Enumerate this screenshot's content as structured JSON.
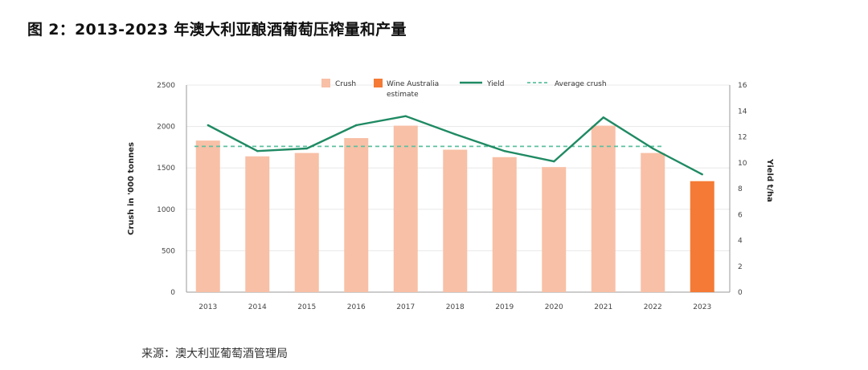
{
  "page": {
    "title": "图 2：2013-2023 年澳大利亚酿酒葡萄压榨量和产量",
    "source": "来源：澳大利亚葡萄酒管理局"
  },
  "colors": {
    "crush": "#f8c0a6",
    "estimate": "#f47a35",
    "yield": "#1f8a63",
    "average": "#5cc0a0",
    "grid": "#e8e8e8"
  },
  "chart_data": {
    "type": "bar",
    "categories": [
      "2013",
      "2014",
      "2015",
      "2016",
      "2017",
      "2018",
      "2019",
      "2020",
      "2021",
      "2022",
      "2023"
    ],
    "series": [
      {
        "name": "Crush",
        "type": "bar",
        "axis": "left",
        "values": [
          1830,
          1640,
          1680,
          1860,
          2010,
          1720,
          1630,
          1510,
          2010,
          1680,
          1340
        ],
        "estimate_flags": [
          false,
          false,
          false,
          false,
          false,
          false,
          false,
          false,
          false,
          false,
          true
        ]
      },
      {
        "name": "Yield",
        "type": "line",
        "axis": "right",
        "values": [
          12.9,
          10.9,
          11.1,
          12.9,
          13.6,
          12.2,
          10.9,
          10.1,
          13.5,
          11.1,
          9.1
        ]
      },
      {
        "name": "Average crush",
        "type": "line-dashed",
        "axis": "left",
        "value": 1760
      }
    ],
    "legend": [
      "Crush",
      "Wine Australia estimate",
      "Yield",
      "Average crush"
    ],
    "legend_placement": "top",
    "ylabel_left": "Crush in '000 tonnes",
    "ylabel_right": "Yield t/ha",
    "yticks_left": [
      0,
      500,
      1000,
      1500,
      2000,
      2500
    ],
    "yticks_right": [
      0,
      2,
      4,
      6,
      8,
      10,
      12,
      14,
      16
    ],
    "ylim_left": [
      0,
      2500
    ],
    "ylim_right": [
      0,
      16
    ],
    "grid": true
  }
}
